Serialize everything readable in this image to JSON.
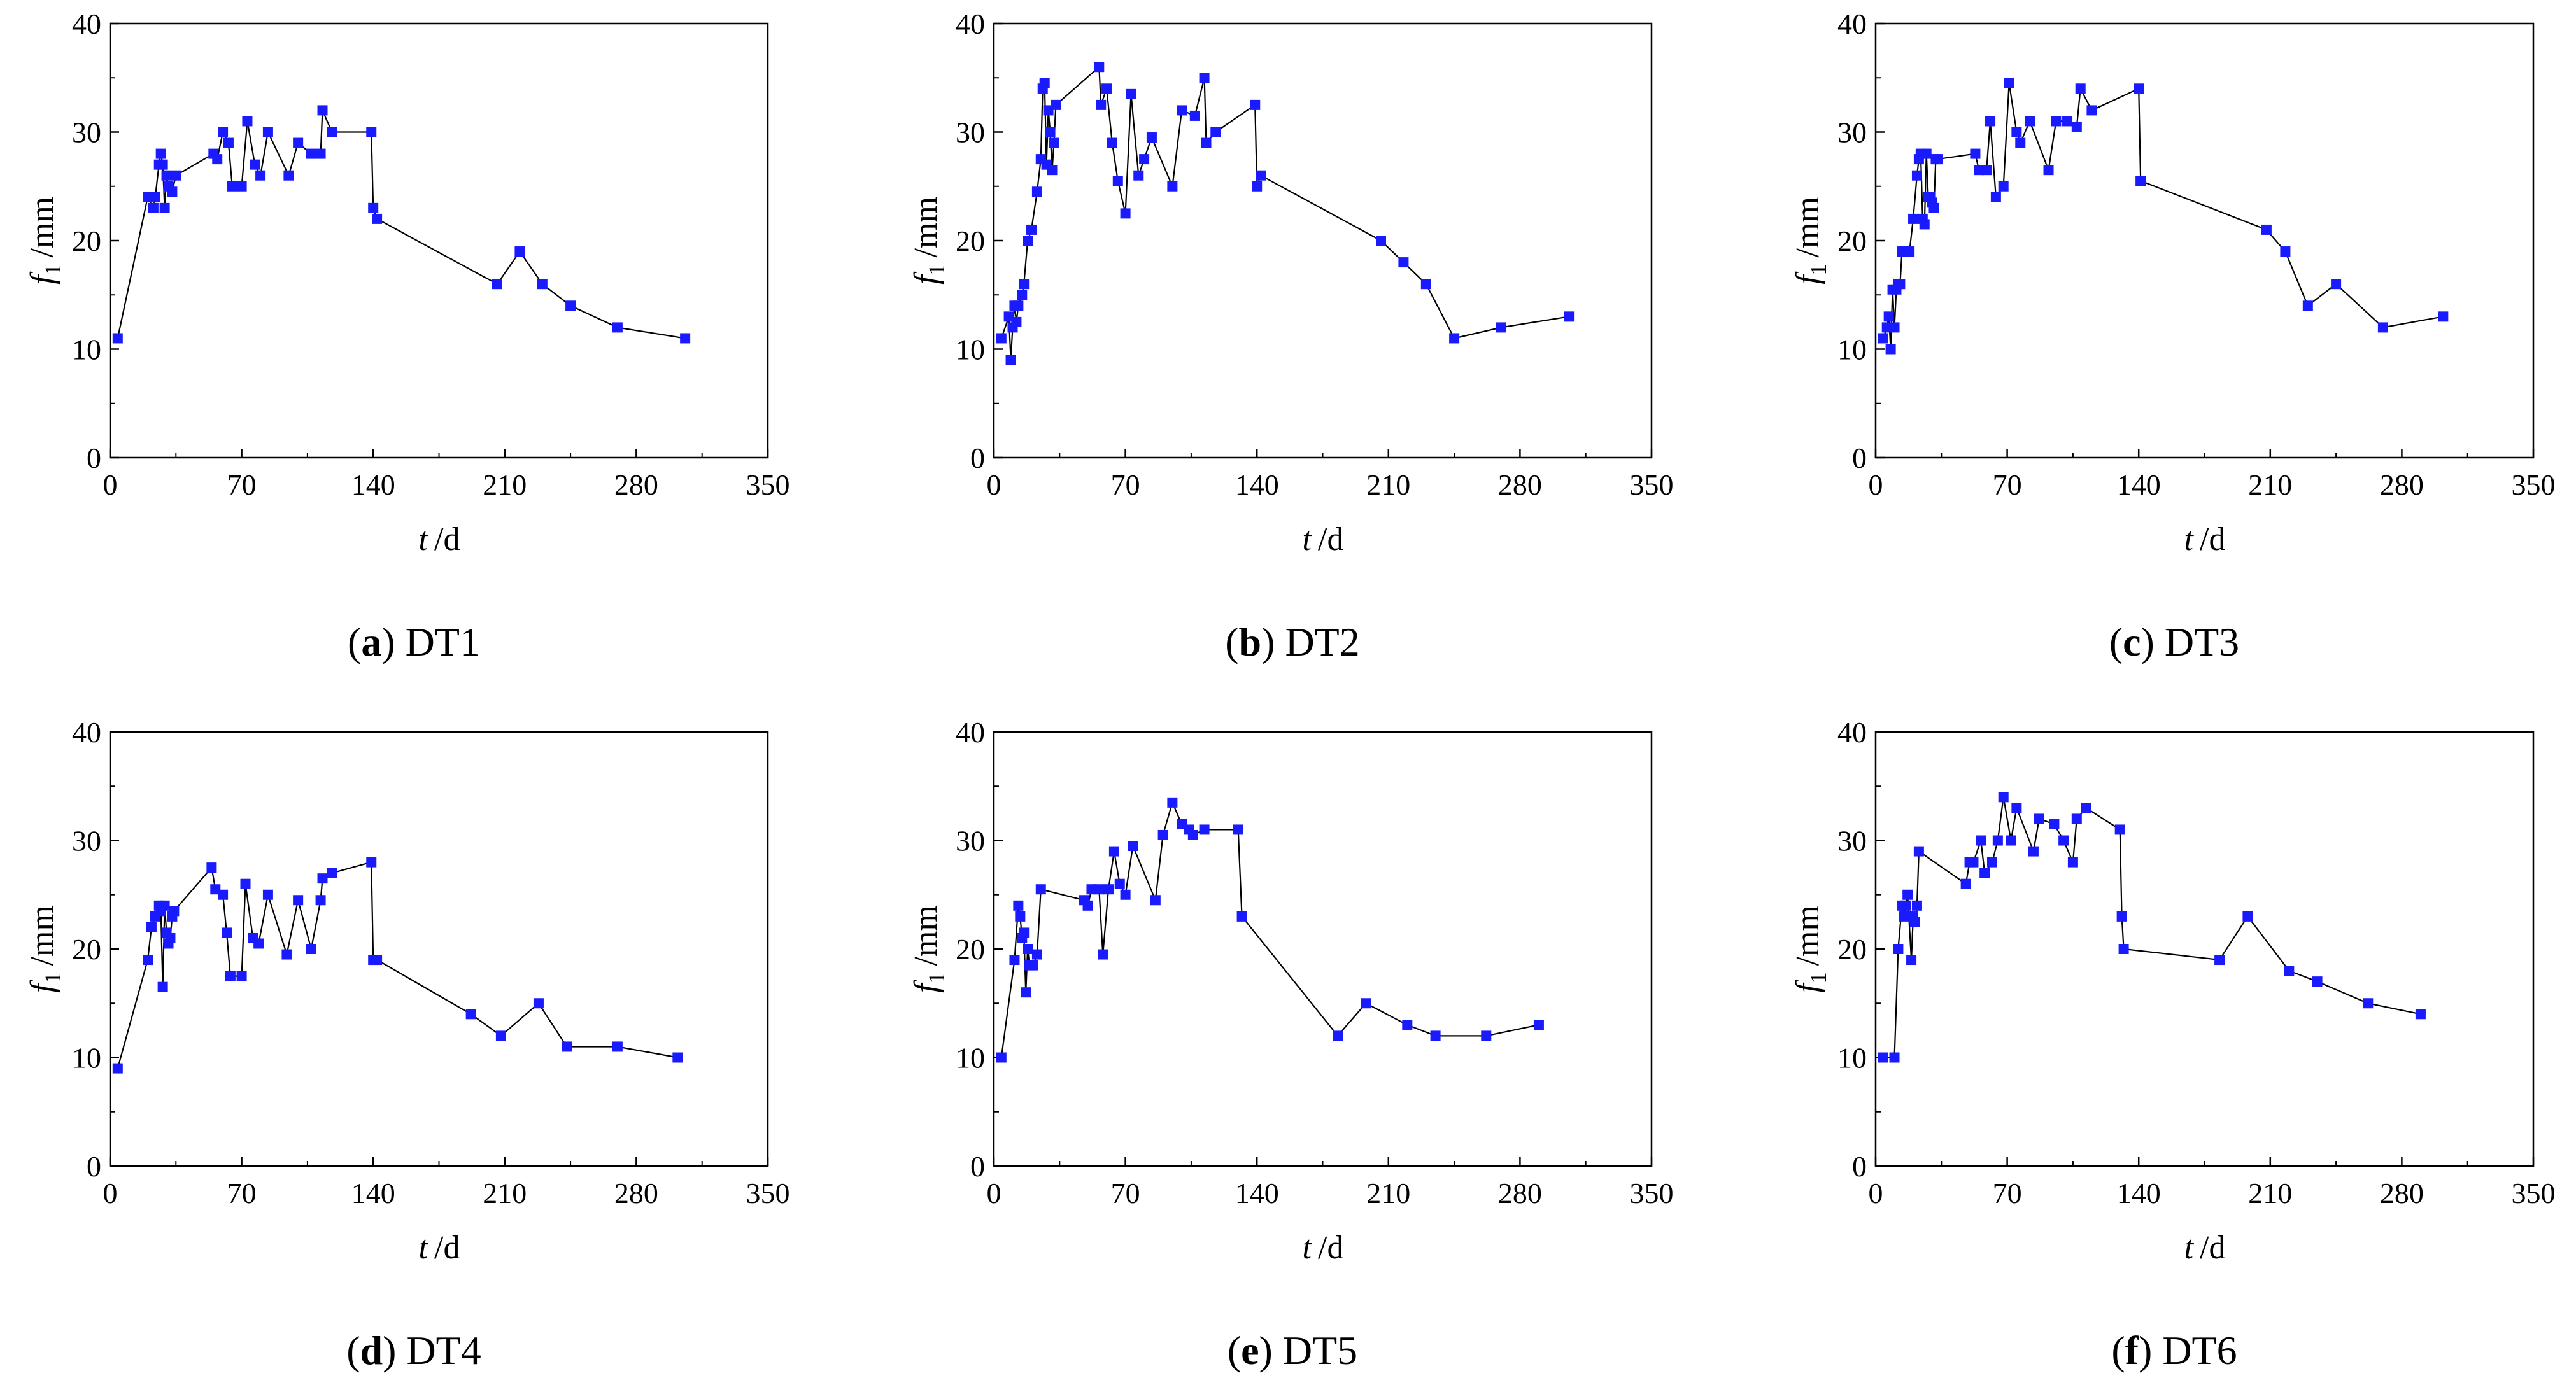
{
  "chart_data": [
    {
      "type": "line",
      "panel_letter": "a",
      "panel_name": "DT1",
      "xlabel": "t",
      "xunit": "/d",
      "ylabel": "f",
      "ysub": "1",
      "yunit": "/mm",
      "xlim": [
        0,
        350
      ],
      "ylim": [
        0,
        40
      ],
      "xticks": [
        "0",
        "70",
        "140",
        "210",
        "280",
        "350"
      ],
      "yticks": [
        "0",
        "10",
        "20",
        "30",
        "40"
      ],
      "series": [
        {
          "name": "DT1",
          "color": "#1a1aff",
          "x": [
            4,
            20,
            23,
            24,
            26,
            27,
            28,
            29,
            30,
            31,
            33,
            35,
            55,
            57,
            60,
            63,
            65,
            70,
            73,
            77,
            80,
            84,
            95,
            100,
            107,
            112,
            113,
            118,
            139,
            140,
            142,
            206,
            218,
            230,
            245,
            270,
            306
          ],
          "y": [
            11,
            24,
            23,
            24,
            27,
            28,
            27,
            23,
            26,
            25,
            24.5,
            26,
            28,
            27.5,
            30,
            29,
            25,
            25,
            31,
            27,
            26,
            30,
            26,
            29,
            28,
            28,
            32,
            30,
            30,
            23,
            22,
            16,
            19,
            16,
            14,
            12,
            11
          ]
        }
      ]
    },
    {
      "type": "line",
      "panel_letter": "b",
      "panel_name": "DT2",
      "xlabel": "t",
      "xunit": "/d",
      "ylabel": "f",
      "ysub": "1",
      "yunit": "/mm",
      "xlim": [
        0,
        350
      ],
      "ylim": [
        0,
        40
      ],
      "xticks": [
        "0",
        "70",
        "140",
        "210",
        "280",
        "350"
      ],
      "yticks": [
        "0",
        "10",
        "20",
        "30",
        "40"
      ],
      "series": [
        {
          "name": "DT2",
          "color": "#1a1aff",
          "x": [
            4,
            8,
            9,
            10,
            11,
            12,
            13,
            15,
            16,
            18,
            20,
            23,
            25,
            26,
            27,
            28,
            29,
            30,
            31,
            32,
            33,
            56,
            57,
            60,
            63,
            66,
            70,
            73,
            77,
            80,
            84,
            95,
            100,
            107,
            112,
            113,
            118,
            139,
            140,
            142,
            206,
            218,
            230,
            245,
            270,
            306
          ],
          "y": [
            11,
            13,
            9,
            12,
            14,
            12.5,
            14,
            15,
            16,
            20,
            21,
            24.5,
            27.5,
            34,
            34.5,
            27,
            32,
            30,
            26.5,
            29,
            32.5,
            36,
            32.5,
            34,
            29,
            25.5,
            22.5,
            33.5,
            26,
            27.5,
            29.5,
            25,
            32,
            31.5,
            35,
            29,
            30,
            32.5,
            25,
            26,
            20,
            18,
            16,
            11,
            12,
            13
          ]
        }
      ]
    },
    {
      "type": "line",
      "panel_letter": "c",
      "panel_name": "DT3",
      "xlabel": "t",
      "xunit": "/d",
      "ylabel": "f",
      "ysub": "1",
      "yunit": "/mm",
      "xlim": [
        0,
        350
      ],
      "ylim": [
        0,
        40
      ],
      "xticks": [
        "0",
        "70",
        "140",
        "210",
        "280",
        "350"
      ],
      "yticks": [
        "0",
        "10",
        "20",
        "30",
        "40"
      ],
      "series": [
        {
          "name": "DT3",
          "color": "#1a1aff",
          "x": [
            4,
            6,
            7,
            8,
            9,
            10,
            11,
            12,
            13,
            14,
            16,
            18,
            20,
            22,
            23,
            24,
            25,
            26,
            27,
            28,
            29,
            30,
            31,
            32,
            33,
            53,
            55,
            59,
            61,
            64,
            68,
            71,
            75,
            77,
            82,
            92,
            96,
            102,
            107,
            109,
            115,
            140,
            141,
            208,
            218,
            230,
            245,
            270,
            302
          ],
          "y": [
            11,
            12,
            13,
            10,
            15.5,
            12,
            15.5,
            16,
            16,
            19,
            19,
            19,
            22,
            26,
            27.5,
            28,
            22,
            21.5,
            28,
            24,
            24,
            23.5,
            23,
            27.5,
            27.5,
            28,
            26.5,
            26.5,
            31,
            24,
            25,
            34.5,
            30,
            29,
            31,
            26.5,
            31,
            31,
            30.5,
            34,
            32,
            34,
            25.5,
            21,
            19,
            14,
            16,
            12,
            13
          ]
        }
      ]
    },
    {
      "type": "line",
      "panel_letter": "d",
      "panel_name": "DT4",
      "xlabel": "t",
      "xunit": "/d",
      "ylabel": "f",
      "ysub": "1",
      "yunit": "/mm",
      "xlim": [
        0,
        350
      ],
      "ylim": [
        0,
        40
      ],
      "xticks": [
        "0",
        "70",
        "140",
        "210",
        "280",
        "350"
      ],
      "yticks": [
        "0",
        "10",
        "20",
        "30",
        "40"
      ],
      "series": [
        {
          "name": "DT4",
          "color": "#1a1aff",
          "x": [
            4,
            20,
            22,
            24,
            26,
            27,
            28,
            29,
            30,
            31,
            32,
            33,
            34,
            54,
            56,
            60,
            62,
            64,
            70,
            72,
            76,
            79,
            84,
            94,
            100,
            107,
            112,
            113,
            118,
            139,
            140,
            142,
            192,
            208,
            228,
            243,
            270,
            302
          ],
          "y": [
            9,
            19,
            22,
            23,
            24,
            23.5,
            16.5,
            24,
            21.5,
            20.5,
            21,
            23,
            23.5,
            27.5,
            25.5,
            25,
            21.5,
            17.5,
            17.5,
            26,
            21,
            20.5,
            25,
            19.5,
            24.5,
            20,
            24.5,
            26.5,
            27,
            28,
            19,
            19,
            14,
            12,
            15,
            11,
            11,
            10
          ]
        }
      ]
    },
    {
      "type": "line",
      "panel_letter": "e",
      "panel_name": "DT5",
      "xlabel": "t",
      "xunit": "/d",
      "ylabel": "f",
      "ysub": "1",
      "yunit": "/mm",
      "xlim": [
        0,
        350
      ],
      "ylim": [
        0,
        40
      ],
      "xticks": [
        "0",
        "70",
        "140",
        "210",
        "280",
        "350"
      ],
      "yticks": [
        "0",
        "10",
        "20",
        "30",
        "40"
      ],
      "series": [
        {
          "name": "DT5",
          "color": "#1a1aff",
          "x": [
            4,
            11,
            13,
            14,
            15,
            16,
            17,
            18,
            19,
            21,
            23,
            25,
            48,
            50,
            52,
            56,
            58,
            61,
            64,
            67,
            70,
            74,
            86,
            90,
            95,
            100,
            104,
            106,
            112,
            130,
            132,
            183,
            198,
            220,
            235,
            262,
            290
          ],
          "y": [
            10,
            19,
            24,
            23,
            21,
            21.5,
            16,
            20,
            18.5,
            18.5,
            19.5,
            25.5,
            24.5,
            24,
            25.5,
            25.5,
            19.5,
            25.5,
            29,
            26,
            25,
            29.5,
            24.5,
            30.5,
            33.5,
            31.5,
            31,
            30.5,
            31,
            31,
            23,
            12,
            15,
            13,
            12,
            12,
            13
          ]
        }
      ]
    },
    {
      "type": "line",
      "panel_letter": "f",
      "panel_name": "DT6",
      "xlabel": "t",
      "xunit": "/d",
      "ylabel": "f",
      "ysub": "1",
      "yunit": "/mm",
      "xlim": [
        0,
        350
      ],
      "ylim": [
        0,
        40
      ],
      "xticks": [
        "0",
        "70",
        "140",
        "210",
        "280",
        "350"
      ],
      "yticks": [
        "0",
        "10",
        "20",
        "30",
        "40"
      ],
      "series": [
        {
          "name": "DT6",
          "color": "#1a1aff",
          "x": [
            4,
            10,
            12,
            14,
            15,
            16,
            17,
            19,
            20,
            21,
            22,
            23,
            48,
            50,
            52,
            56,
            58,
            62,
            65,
            68,
            72,
            75,
            84,
            87,
            95,
            100,
            105,
            107,
            112,
            130,
            131,
            132,
            183,
            198,
            220,
            235,
            262,
            290
          ],
          "y": [
            10,
            10,
            20,
            24,
            23,
            24,
            25,
            19,
            23,
            22.5,
            24,
            29,
            26,
            28,
            28,
            30,
            27,
            28,
            30,
            34,
            30,
            33,
            29,
            32,
            31.5,
            30,
            28,
            32,
            33,
            31,
            23,
            20,
            19,
            23,
            18,
            17,
            15,
            14
          ]
        }
      ]
    }
  ]
}
